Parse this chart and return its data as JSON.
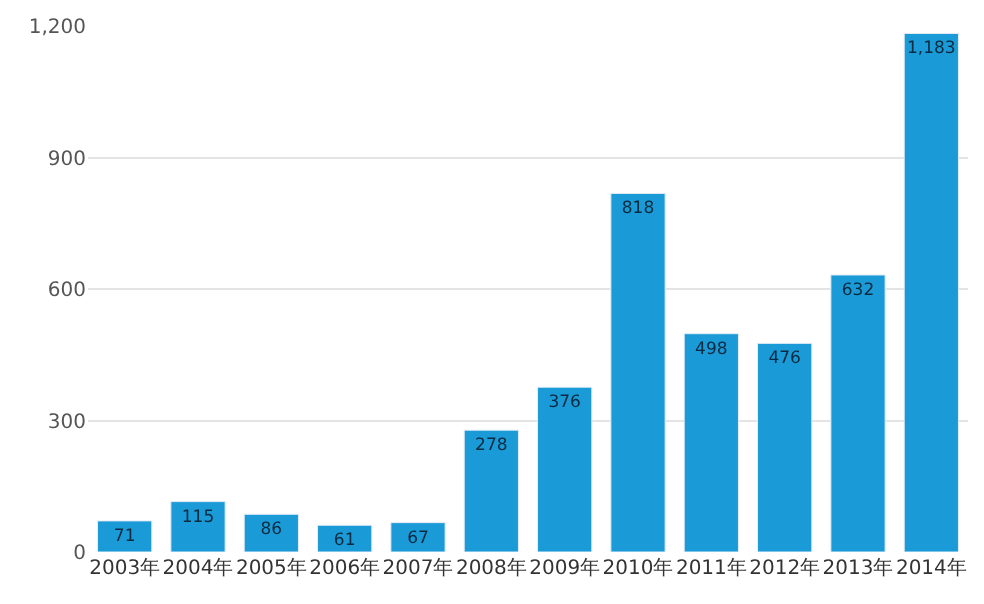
{
  "chart_data": {
    "type": "bar",
    "categories": [
      "2003年",
      "2004年",
      "2005年",
      "2006年",
      "2007年",
      "2008年",
      "2009年",
      "2010年",
      "2011年",
      "2012年",
      "2013年",
      "2014年"
    ],
    "values": [
      71,
      115,
      86,
      61,
      67,
      278,
      376,
      818,
      498,
      476,
      632,
      1183
    ],
    "color": "#1a9bd7",
    "ylim": [
      0,
      1200
    ],
    "yticks": [
      0,
      {
        "value": 300,
        "label": "300"
      },
      {
        "value": 600,
        "label": "600"
      },
      {
        "value": 900,
        "label": "900"
      },
      {
        "value": 1200,
        "label": "1,200"
      }
    ],
    "grid": "y",
    "value_labels": [
      "71",
      "115",
      "86",
      "61",
      "67",
      "278",
      "376",
      "818",
      "498",
      "476",
      "632",
      "1,183"
    ],
    "legend": false
  }
}
